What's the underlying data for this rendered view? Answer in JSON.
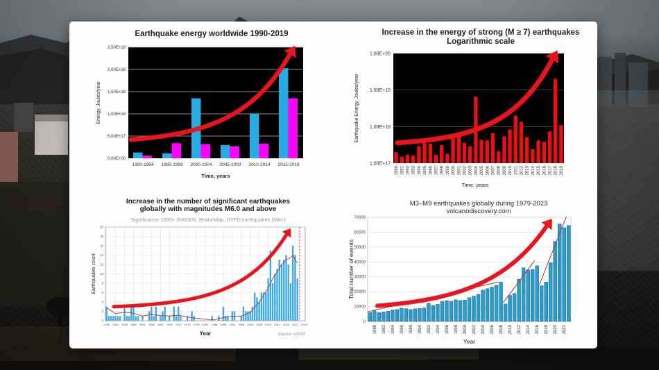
{
  "slide": {
    "kind": "earthquake-statistics-slide"
  },
  "colors": {
    "arrow_red": "#e8141e",
    "chart1_blue": "#29abe2",
    "chart1_magenta": "#ff00ff",
    "chart2_bar": "#e81010",
    "chart3_bar": "#3fa9e4",
    "chart4_bar": "#2e9cc9",
    "chart4_bar_edge": "#12608e",
    "trend_dark_red": "#b03030",
    "dashed_red": "#e03030",
    "plot_black": "#000000"
  },
  "chart_data": [
    {
      "type": "bar",
      "title": "Earthquake energy worldwide 1990-2019",
      "xlabel": "Time, years",
      "ylabel": "Energy, Joules/year",
      "categories": [
        "1990-1994",
        "1995-1999",
        "2000-2004",
        "2005-2009",
        "2010-2014",
        "2015-2019"
      ],
      "series": [
        {
          "name": "blue",
          "values_e17": [
            1.3,
            1.1,
            13.5,
            3.0,
            10.1,
            20.3
          ]
        },
        {
          "name": "magenta",
          "values_e17": [
            0.6,
            3.4,
            3.2,
            2.7,
            3.3,
            13.5
          ]
        }
      ],
      "ytick_labels": [
        "0,00E+00",
        "5,00E+17",
        "1,00E+18",
        "1,50E+18",
        "2,00E+18",
        "2,50E+18"
      ],
      "ylim_e17": [
        0,
        25
      ],
      "grid": "horizontal",
      "plot_background": "black",
      "annotation": "red exponential growth arrow"
    },
    {
      "type": "bar",
      "title": "Increase in the energy of strong  (M ≥ 7) earthquakes",
      "subtitle": "Logarithmic scale",
      "xlabel": "Time, years",
      "ylabel": "Earthquake Energy, Joules/year",
      "yscale": "log",
      "xtick_labels": [
        "1990",
        "1991",
        "1992",
        "1993",
        "1994",
        "1995",
        "1996",
        "1997",
        "1998",
        "1999",
        "2000",
        "2001",
        "2002",
        "2003",
        "2004",
        "2005",
        "2006",
        "2007",
        "2008",
        "2009",
        "2010",
        "2011",
        "2012",
        "2013",
        "2014",
        "2015",
        "2016",
        "2017",
        "2018",
        "2019"
      ],
      "values_e17": [
        2.0,
        1.5,
        1.7,
        1.6,
        2.9,
        3.6,
        3.4,
        1.7,
        3.1,
        1.8,
        5.2,
        5.9,
        3.6,
        2.9,
        66,
        4.3,
        4.2,
        6.6,
        2.1,
        5.4,
        8.3,
        20,
        13.5,
        5.1,
        2.4,
        4.2,
        3.8,
        7.4,
        200,
        11
      ],
      "ytick_labels": [
        "1,00E+17",
        "1,00E+18",
        "1,00E+19",
        "1,00E+20"
      ],
      "ylim_e17_log": [
        1,
        1000
      ],
      "plot_background": "black",
      "annotation": "red exponential growth arrow"
    },
    {
      "type": "bar",
      "title_line1": "Increase in the number of significant earthquakes",
      "title_line2": "globally with magnitudes M6.0 and above",
      "subtitle": "Significance 1000+ (PAGER, ShakeMap, DYFI) earthquakes (M6+)",
      "xlabel": "Year",
      "ylabel": "Earthquakes count",
      "source": "Source: USGS",
      "start_year": 1938,
      "values": [
        3,
        1,
        1,
        1,
        1,
        1,
        1,
        0,
        3,
        1,
        1,
        3,
        3,
        1,
        1,
        0,
        1,
        0,
        0,
        2,
        3,
        1,
        3,
        0,
        1,
        2,
        3,
        0,
        1,
        0,
        3,
        1,
        3,
        1,
        0,
        0,
        1,
        0,
        2,
        1,
        0,
        0,
        0,
        0,
        0,
        0,
        0,
        1,
        0,
        0,
        1,
        0,
        3,
        1,
        1,
        0,
        2,
        2,
        0,
        0,
        1,
        3,
        2,
        2,
        2,
        3,
        6,
        5,
        4,
        6,
        6,
        6,
        9,
        15,
        8,
        10,
        11,
        13,
        12,
        13,
        14,
        12,
        8,
        16,
        14,
        9
      ],
      "xtick_labels": [
        "1938",
        "1942",
        "1946",
        "1950",
        "1954",
        "1958",
        "1962",
        "1966",
        "1970",
        "1974",
        "1978",
        "1982",
        "1986",
        "1990",
        "1994",
        "1998",
        "2002",
        "2006",
        "2010",
        "2014",
        "2018",
        "2022",
        "2026"
      ],
      "ytick_labels": [
        "0",
        "2",
        "4",
        "6",
        "8",
        "10",
        "12",
        "14",
        "16",
        "18",
        "20"
      ],
      "ylim": [
        0,
        20
      ],
      "xlim": [
        1937.5,
        2026.5
      ],
      "dashed_marker_year": 2024,
      "trend": [
        [
          1938,
          2.8
        ],
        [
          1942,
          1.5
        ],
        [
          1946,
          1.8
        ],
        [
          1950,
          1.6
        ],
        [
          1954,
          1.0
        ],
        [
          1958,
          1.3
        ],
        [
          1962,
          1.1
        ],
        [
          1966,
          1.0
        ],
        [
          1970,
          1.2
        ],
        [
          1974,
          0.8
        ],
        [
          1978,
          0.5
        ],
        [
          1982,
          0.3
        ],
        [
          1986,
          0.2
        ],
        [
          1990,
          0.7
        ],
        [
          1994,
          0.9
        ],
        [
          1998,
          1.0
        ],
        [
          2002,
          1.8
        ],
        [
          2006,
          4.0
        ],
        [
          2010,
          7.0
        ],
        [
          2012,
          9.0
        ],
        [
          2014,
          10.5
        ],
        [
          2016,
          12.0
        ],
        [
          2018,
          13.0
        ],
        [
          2020,
          13.5
        ],
        [
          2021,
          14.0
        ],
        [
          2022,
          13.0
        ],
        [
          2023,
          12.3
        ]
      ],
      "grid": "both",
      "annotation": "red exponential growth arrow"
    },
    {
      "type": "bar",
      "title": "M3–M9 earthquakes globally during 1979-2023",
      "subtitle": "volcanodiscovery.com",
      "xlabel": "Year",
      "ylabel": "Total number of events",
      "start_year": 1979,
      "values": [
        6000,
        7200,
        6000,
        6300,
        6800,
        7700,
        8000,
        8900,
        8600,
        8000,
        8500,
        8700,
        9100,
        12300,
        10700,
        11500,
        13500,
        14000,
        13500,
        14500,
        14000,
        14300,
        16000,
        17000,
        18200,
        21000,
        22000,
        23000,
        24300,
        26400,
        11700,
        17500,
        18800,
        28300,
        36000,
        34600,
        35000,
        37400,
        24000,
        26500,
        39400,
        53800,
        65500,
        63000,
        64500
      ],
      "xtick_labels": [
        "1980",
        "1982",
        "1984",
        "1986",
        "1988",
        "1990",
        "1992",
        "1994",
        "1996",
        "1998",
        "2000",
        "2002",
        "2004",
        "2006",
        "2008",
        "2010",
        "2012",
        "2014",
        "2016",
        "2018",
        "2020",
        "2022"
      ],
      "ytick_labels": [
        "0",
        "10000",
        "20000",
        "30000",
        "40000",
        "50000",
        "60000",
        "70000"
      ],
      "ylim": [
        0,
        70000
      ],
      "grid": "horizontal",
      "trend_segments": [
        [
          [
            1979,
            6500
          ],
          [
            2008,
            26500
          ]
        ],
        [
          [
            2009,
            12500
          ],
          [
            2016,
            41000
          ]
        ],
        [
          [
            2017,
            24500
          ],
          [
            2023,
            70500
          ]
        ]
      ],
      "annotation": "red exponential growth arrow"
    }
  ]
}
